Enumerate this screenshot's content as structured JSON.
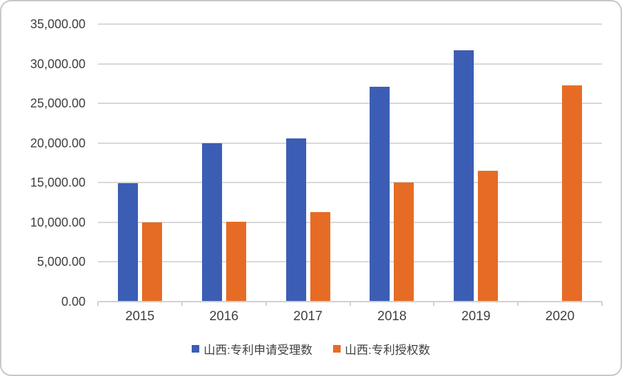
{
  "chart_data": {
    "type": "bar",
    "title": "",
    "xlabel": "",
    "ylabel": "",
    "categories": [
      "2015",
      "2016",
      "2017",
      "2018",
      "2019",
      "2020"
    ],
    "series": [
      {
        "name": "山西:专利申请受理数",
        "key": "applications",
        "color": "#3B5EB4",
        "values": [
          14900,
          19950,
          20600,
          27100,
          31700,
          null
        ]
      },
      {
        "name": "山西:专利授权数",
        "key": "grants",
        "color": "#E66C25",
        "values": [
          10000,
          10060,
          11260,
          15050,
          16500,
          27300
        ]
      }
    ],
    "ylim": [
      0,
      35000
    ],
    "ytick_step": 5000,
    "yticks": [
      "35,000.00",
      "30,000.00",
      "25,000.00",
      "20,000.00",
      "15,000.00",
      "10,000.00",
      "5,000.00",
      "0.00"
    ],
    "grid": true,
    "legend_position": "bottom"
  },
  "colors": {
    "gridline": "#D8D8D8",
    "axis_line": "#D0D0D0",
    "tick_text": "#404040",
    "legend_text": "#3F3F3F",
    "frame_border": "#C7C7C7"
  }
}
